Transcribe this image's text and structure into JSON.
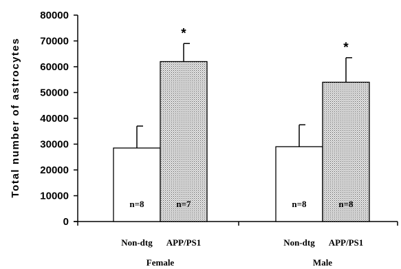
{
  "chart_data": {
    "type": "bar",
    "ylabel": "Total number of astrocytes",
    "ylim": [
      0,
      80000
    ],
    "yticks": [
      "0",
      "10000",
      "20000",
      "30000",
      "40000",
      "50000",
      "60000",
      "70000",
      "80000"
    ],
    "groups": [
      "Female",
      "Male"
    ],
    "categories": [
      "Non-dtg",
      "APP/PS1"
    ],
    "series": [
      {
        "values": [
          28500,
          62000
        ],
        "errors": [
          8500,
          7000
        ],
        "n_labels": [
          "n=8",
          "n=7"
        ],
        "significance": [
          "",
          "*"
        ],
        "fills": [
          "white",
          "dotted"
        ]
      },
      {
        "values": [
          29000,
          54000
        ],
        "errors": [
          8500,
          9500
        ],
        "n_labels": [
          "n=8",
          "n=8"
        ],
        "significance": [
          "",
          "*"
        ],
        "fills": [
          "white",
          "dotted"
        ]
      }
    ],
    "colors": {
      "bar_stroke": "#000000",
      "dotted_fill": "#d0d0d0"
    }
  }
}
